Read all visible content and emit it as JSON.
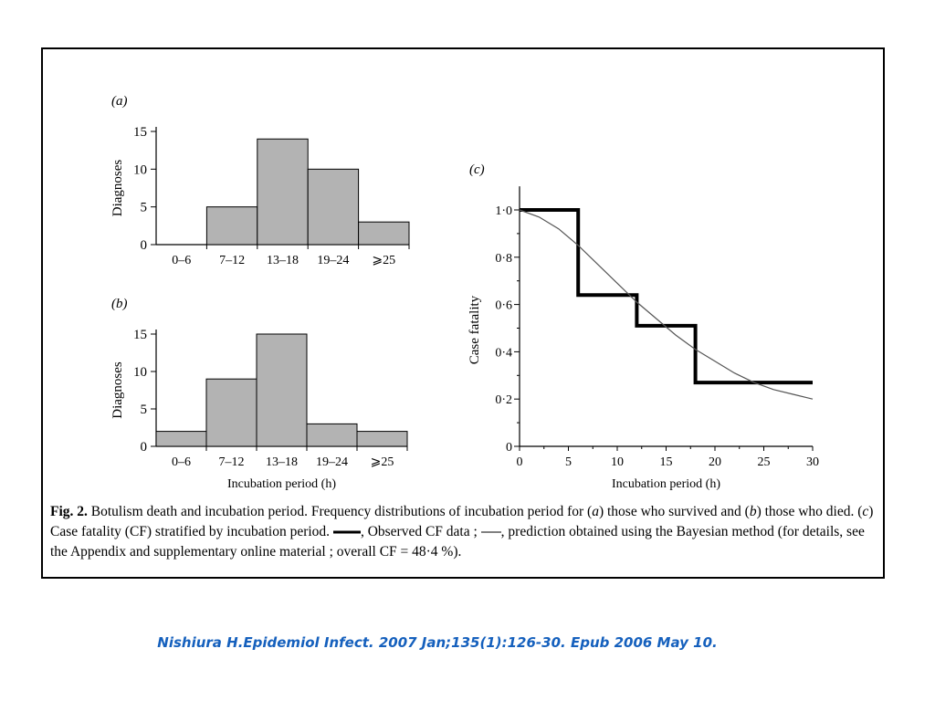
{
  "chart_data": [
    {
      "type": "bar",
      "panel_label": "(a)",
      "categories": [
        "0–6",
        "7–12",
        "13–18",
        "19–24",
        "⩾25"
      ],
      "values": [
        0,
        5,
        14,
        10,
        3
      ],
      "ylabel": "Diagnoses",
      "xlabel": "",
      "yticks": [
        0,
        5,
        10,
        15
      ],
      "ylim": [
        0,
        15
      ],
      "bar_color": "#b3b3b3"
    },
    {
      "type": "bar",
      "panel_label": "(b)",
      "categories": [
        "0–6",
        "7–12",
        "13–18",
        "19–24",
        "⩾25"
      ],
      "values": [
        2,
        9,
        15,
        3,
        2
      ],
      "ylabel": "Diagnoses",
      "xlabel": "Incubation period (h)",
      "yticks": [
        0,
        5,
        10,
        15
      ],
      "ylim": [
        0,
        15
      ],
      "bar_color": "#b3b3b3"
    },
    {
      "type": "line",
      "panel_label": "(c)",
      "xlabel": "Incubation period (h)",
      "ylabel": "Case fatality",
      "xlim": [
        0,
        30
      ],
      "ylim": [
        0,
        1.1
      ],
      "xticks": [
        0,
        5,
        10,
        15,
        20,
        25,
        30
      ],
      "yticks": [
        0,
        0.2,
        0.4,
        0.6,
        0.8,
        1.0
      ],
      "ytick_labels": [
        "0",
        "0·2",
        "0·4",
        "0·6",
        "0·8",
        "1·0"
      ],
      "series": [
        {
          "kind": "step",
          "x": [
            0,
            6,
            6,
            12,
            12,
            18,
            18,
            30
          ],
          "y": [
            1.0,
            1.0,
            0.64,
            0.64,
            0.51,
            0.51,
            0.27,
            0.27
          ]
        },
        {
          "kind": "curve",
          "x": [
            0,
            2,
            4,
            6,
            8,
            10,
            12,
            14,
            16,
            18,
            20,
            22,
            24,
            26,
            28,
            30
          ],
          "y": [
            1.0,
            0.97,
            0.92,
            0.85,
            0.77,
            0.69,
            0.61,
            0.54,
            0.47,
            0.41,
            0.36,
            0.31,
            0.27,
            0.24,
            0.22,
            0.2
          ]
        }
      ]
    }
  ],
  "caption": {
    "fig_label": "Fig. 2.",
    "text_1": " Botulism death and incubation period. Frequency distributions of incubation period for (",
    "a": "a",
    "text_2": ") those who survived and (",
    "b": "b",
    "text_3": ") those who died. (",
    "c": "c",
    "text_4": ") Case fatality (CF) stratified by incubation period. ",
    "text_5": ", Observed CF data ; ",
    "text_6": ", prediction obtained using the Bayesian method (for details, see the Appendix and supplementary online material ; overall CF = 48·4 %)."
  },
  "citation": "Nishiura H.Epidemiol Infect. 2007 Jan;135(1):126-30. Epub 2006 May 10."
}
